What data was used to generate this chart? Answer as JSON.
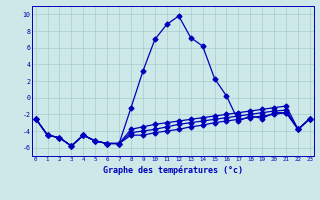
{
  "title": "Graphe des températures (°c)",
  "bg_color": "#cce8e8",
  "grid_color": "#aacccc",
  "line_color": "#0000bb",
  "spine_color": "#0000bb",
  "x_hours": [
    0,
    1,
    2,
    3,
    4,
    5,
    6,
    7,
    8,
    9,
    10,
    11,
    12,
    13,
    14,
    15,
    16,
    17,
    18,
    19,
    20,
    21,
    22,
    23
  ],
  "series1": [
    -2.5,
    -4.5,
    -4.8,
    -5.8,
    -4.5,
    -5.2,
    -5.5,
    -5.5,
    -1.2,
    3.2,
    7.0,
    8.8,
    9.8,
    7.2,
    6.2,
    2.3,
    0.2,
    -2.8,
    -2.2,
    -2.5,
    -1.8,
    -1.8,
    -3.8,
    -2.5
  ],
  "series2": [
    -2.5,
    -4.5,
    -4.8,
    -5.8,
    -4.5,
    -5.2,
    -5.5,
    -5.5,
    -4.5,
    -4.5,
    -4.2,
    -4.0,
    -3.8,
    -3.5,
    -3.3,
    -3.0,
    -2.8,
    -2.6,
    -2.4,
    -2.2,
    -2.0,
    -1.8,
    -3.8,
    -2.5
  ],
  "series3": [
    -2.5,
    -4.5,
    -4.8,
    -5.8,
    -4.5,
    -5.2,
    -5.5,
    -5.5,
    -4.2,
    -4.0,
    -3.8,
    -3.5,
    -3.2,
    -3.0,
    -2.8,
    -2.6,
    -2.4,
    -2.2,
    -2.0,
    -1.8,
    -1.6,
    -1.5,
    -3.8,
    -2.5
  ],
  "series4": [
    -2.5,
    -4.5,
    -4.8,
    -5.8,
    -4.5,
    -5.2,
    -5.5,
    -5.5,
    -3.8,
    -3.5,
    -3.2,
    -3.0,
    -2.8,
    -2.6,
    -2.4,
    -2.2,
    -2.0,
    -1.8,
    -1.6,
    -1.4,
    -1.2,
    -1.0,
    -3.8,
    -2.5
  ],
  "ylim": [
    -7,
    11
  ],
  "yticks": [
    -6,
    -4,
    -2,
    0,
    2,
    4,
    6,
    8,
    10
  ],
  "xlim": [
    -0.3,
    23.3
  ]
}
